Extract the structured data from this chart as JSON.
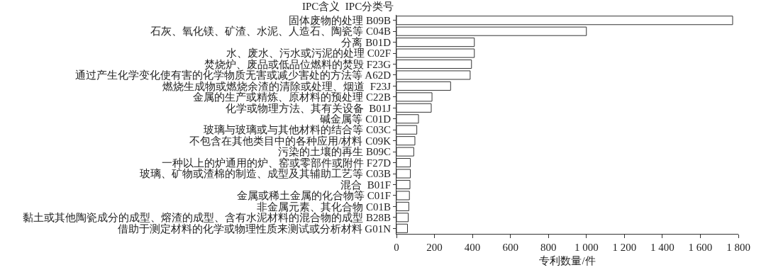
{
  "chart_data": {
    "type": "bar",
    "orientation": "horizontal",
    "ylabel": "IPC含义  IPC分类号",
    "xlabel": "专利数量/件",
    "categories": [
      "固体废物的处理 B09B",
      "石灰、氧化镁、矿渣、水泥、人造石、陶瓷等 C04B",
      "分离 B01D",
      "水、废水、污水或污泥的处理 C02F",
      "焚烧炉、废品或低品位燃料的焚毁 F23G",
      "通过产生化学变化使有害的化学物质无害或减少害处的方法等 A62D",
      "燃烧生成物或燃烧余渣的清除或处理、烟道  F23J",
      "金属的生产或精炼、原材料的预处理 C22B",
      "化学或物理方法、其有关设备  B01J",
      "碱金属等 C01D",
      "玻璃与玻璃或与其他材料的结合等 C03C",
      "不包含在其他类目中的各种应用/材料 C09K",
      "污染的土壤的再生 B09C",
      "一种以上的炉通用的炉、窑或零部件或附件 F27D",
      "玻璃、矿物或渣棉的制造、成型及其辅助工艺等 C03B",
      "混合  B01F",
      "金属或稀土金属的化合物等 C01F",
      "非金属元素、其化合物 C01B",
      "黏土或其他陶瓷成分的成型、熔渣的成型、含有水泥材料的混合物的成型 B28B",
      "借助于测定材料的化学或物理性质来测试或分析材料 G01N"
    ],
    "values": [
      1770,
      1000,
      410,
      410,
      395,
      388,
      285,
      187,
      183,
      116,
      107,
      97,
      91,
      73,
      73,
      71,
      68,
      65,
      62,
      58
    ],
    "color": "#ffffff",
    "xlim": [
      0,
      1800
    ],
    "xticks": [
      0,
      200,
      400,
      600,
      800,
      {
        "value": 1000,
        "label": "1 000"
      },
      {
        "value": 1200,
        "label": "1 200"
      },
      {
        "value": 1400,
        "label": "1 400"
      },
      {
        "value": 1600,
        "label": "1 600"
      },
      {
        "value": 1800,
        "label": "1 800"
      }
    ]
  }
}
